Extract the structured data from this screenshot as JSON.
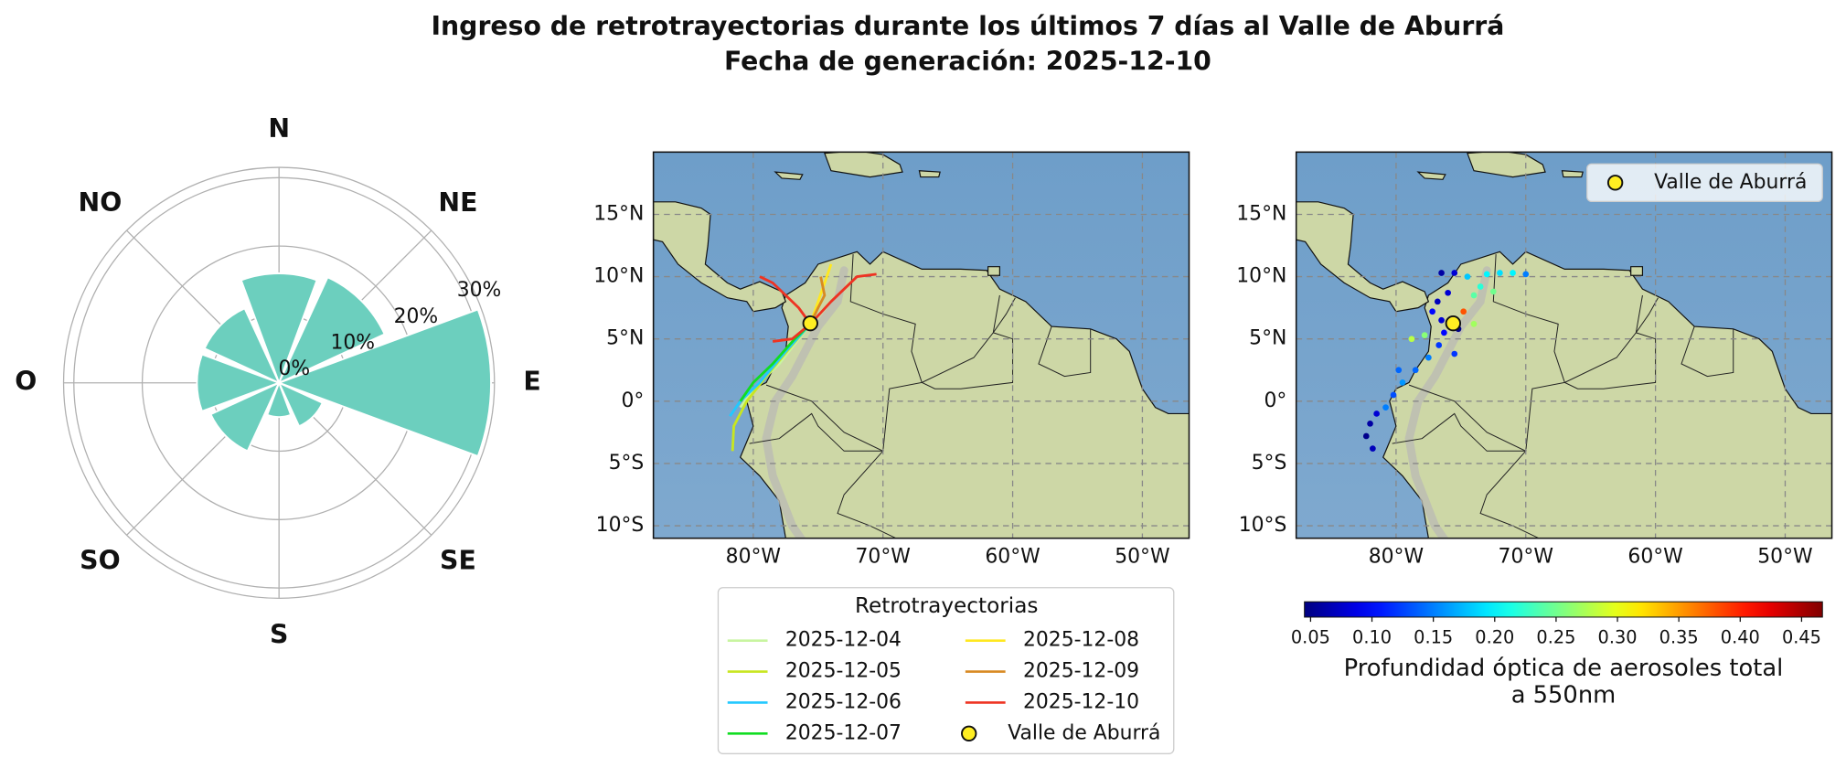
{
  "title": "Ingreso de retrotrayectorias durante los últimos 7 días al Valle de Aburrá",
  "subtitle": "Fecha de generación: 2025-12-10",
  "chart_data": [
    {
      "type": "polar_bar",
      "categories": [
        "N",
        "NE",
        "E",
        "SE",
        "S",
        "SO",
        "O",
        "NO"
      ],
      "values": [
        16,
        17,
        31,
        7,
        5,
        11,
        12,
        12
      ],
      "color": "#6ccfbe",
      "rlim": [
        0,
        31.5
      ],
      "rticks": [
        {
          "value": 0,
          "label": "0%"
        },
        {
          "value": 10,
          "label": "10%"
        },
        {
          "value": 20,
          "label": "20%"
        },
        {
          "value": 30,
          "label": "30%"
        }
      ],
      "grid": true
    },
    {
      "type": "map_lines",
      "xlim": [
        -87.7,
        -46.4
      ],
      "ylim": [
        -11,
        20
      ],
      "xticks": [
        {
          "value": -80,
          "label": "80°W"
        },
        {
          "value": -70,
          "label": "70°W"
        },
        {
          "value": -60,
          "label": "60°W"
        },
        {
          "value": -50,
          "label": "50°W"
        }
      ],
      "yticks": [
        {
          "value": 15,
          "label": "15°N"
        },
        {
          "value": 10,
          "label": "10°N"
        },
        {
          "value": 5,
          "label": "5°N"
        },
        {
          "value": 0,
          "label": "0°"
        },
        {
          "value": -5,
          "label": "5°S"
        },
        {
          "value": -10,
          "label": "10°S"
        }
      ],
      "grid": true,
      "legend_title": "Retrotrayectorias",
      "series": [
        {
          "name": "2025-12-04",
          "color": "#c8f5a0",
          "x": [
            -75.6,
            -76.5,
            -78,
            -80,
            -81
          ],
          "y": [
            6.2,
            5,
            3,
            1,
            -0.5
          ]
        },
        {
          "name": "2025-12-05",
          "color": "#c8e620",
          "x": [
            -75.6,
            -77,
            -79,
            -80.5,
            -81.5,
            -81.6
          ],
          "y": [
            6.2,
            4.5,
            2,
            0,
            -2,
            -4
          ]
        },
        {
          "name": "2025-12-06",
          "color": "#22c8ff",
          "x": [
            -75.6,
            -77.5,
            -79.5,
            -81,
            -81.8
          ],
          "y": [
            6.2,
            4,
            1.5,
            0,
            -1.2
          ]
        },
        {
          "name": "2025-12-07",
          "color": "#11dd22",
          "x": [
            -75.6,
            -76.8,
            -78.5,
            -80,
            -81
          ],
          "y": [
            6.2,
            5,
            3,
            1.5,
            0
          ]
        },
        {
          "name": "2025-12-08",
          "color": "#ffe820",
          "x": [
            -75.6,
            -75,
            -74.5,
            -74
          ],
          "y": [
            6.2,
            8,
            9.5,
            11
          ]
        },
        {
          "name": "2025-12-09",
          "color": "#d88a22",
          "x": [
            -75.6,
            -75,
            -74.5,
            -74.8
          ],
          "y": [
            6.2,
            7.5,
            8.5,
            10
          ]
        },
        {
          "name": "2025-12-10",
          "color": "#ee3322",
          "x": [
            -75.6,
            -76.5,
            -77.5,
            -78.5,
            -79.5,
            null,
            -75.6,
            -74,
            -72,
            -70.5,
            null,
            -75.6,
            -77,
            -78.5
          ],
          "y": [
            6.2,
            7.5,
            8.5,
            9.5,
            10,
            null,
            6.2,
            8,
            10,
            10.2,
            null,
            6.2,
            5,
            4.8
          ]
        }
      ],
      "marker": {
        "name": "Valle de Aburrá",
        "x": -75.6,
        "y": 6.25,
        "color": "#ffee22"
      }
    },
    {
      "type": "map_scatter",
      "xlim": [
        -87.7,
        -46.4
      ],
      "ylim": [
        -11,
        20
      ],
      "xticks": [
        {
          "value": -80,
          "label": "80°W"
        },
        {
          "value": -70,
          "label": "70°W"
        },
        {
          "value": -60,
          "label": "60°W"
        },
        {
          "value": -50,
          "label": "50°W"
        }
      ],
      "yticks": [
        {
          "value": 15,
          "label": "15°N"
        },
        {
          "value": 10,
          "label": "10°N"
        },
        {
          "value": 5,
          "label": "5°N"
        },
        {
          "value": 0,
          "label": "0°"
        },
        {
          "value": -5,
          "label": "5°S"
        },
        {
          "value": -10,
          "label": "10°S"
        }
      ],
      "grid": true,
      "colormap": "jet",
      "x": [
        -76.5,
        -75.5,
        -74.5,
        -73,
        -72,
        -71,
        -70,
        -73.5,
        -72.5,
        -74,
        -76,
        -76.8,
        -77.2,
        -76.5,
        -76.3,
        -76.7,
        -77.5,
        -78.5,
        -79.5,
        -80.2,
        -80.8,
        -81.5,
        -82,
        -82.3,
        -81.8,
        -78.8,
        -77.8,
        -74.8,
        -74,
        -75.2,
        -75.5,
        -79.8
      ],
      "y": [
        10.3,
        10.3,
        10,
        10.2,
        10.3,
        10.3,
        10.2,
        9.2,
        8.8,
        8.5,
        8.7,
        8,
        7.2,
        6.5,
        5.5,
        4.5,
        3.5,
        2.5,
        1.5,
        0.5,
        -0.5,
        -1,
        -1.8,
        -2.8,
        -3.8,
        5,
        5.3,
        7.2,
        6.2,
        5.8,
        3.8,
        2.5
      ],
      "values": [
        0.06,
        0.08,
        0.18,
        0.2,
        0.19,
        0.2,
        0.15,
        0.22,
        0.25,
        0.24,
        0.08,
        0.07,
        0.1,
        0.08,
        0.1,
        0.12,
        0.15,
        0.14,
        0.16,
        0.13,
        0.15,
        0.08,
        0.06,
        0.05,
        0.07,
        0.28,
        0.26,
        0.38,
        0.27,
        0.05,
        0.12,
        0.14
      ],
      "clim": [
        0.045,
        0.467
      ],
      "cticks": [
        0.05,
        {
          "value": 0.1,
          "label": "0.10"
        },
        0.15,
        {
          "value": 0.2,
          "label": "0.20"
        },
        0.25,
        {
          "value": 0.3,
          "label": "0.30"
        },
        0.35,
        {
          "value": 0.4,
          "label": "0.40"
        },
        0.45
      ],
      "colorbar_label": [
        "Profundidad óptica de aerosoles total",
        "a 550nm"
      ],
      "marker": {
        "name": "Valle de Aburrá",
        "x": -75.6,
        "y": 6.25,
        "color": "#ffee22"
      }
    }
  ]
}
